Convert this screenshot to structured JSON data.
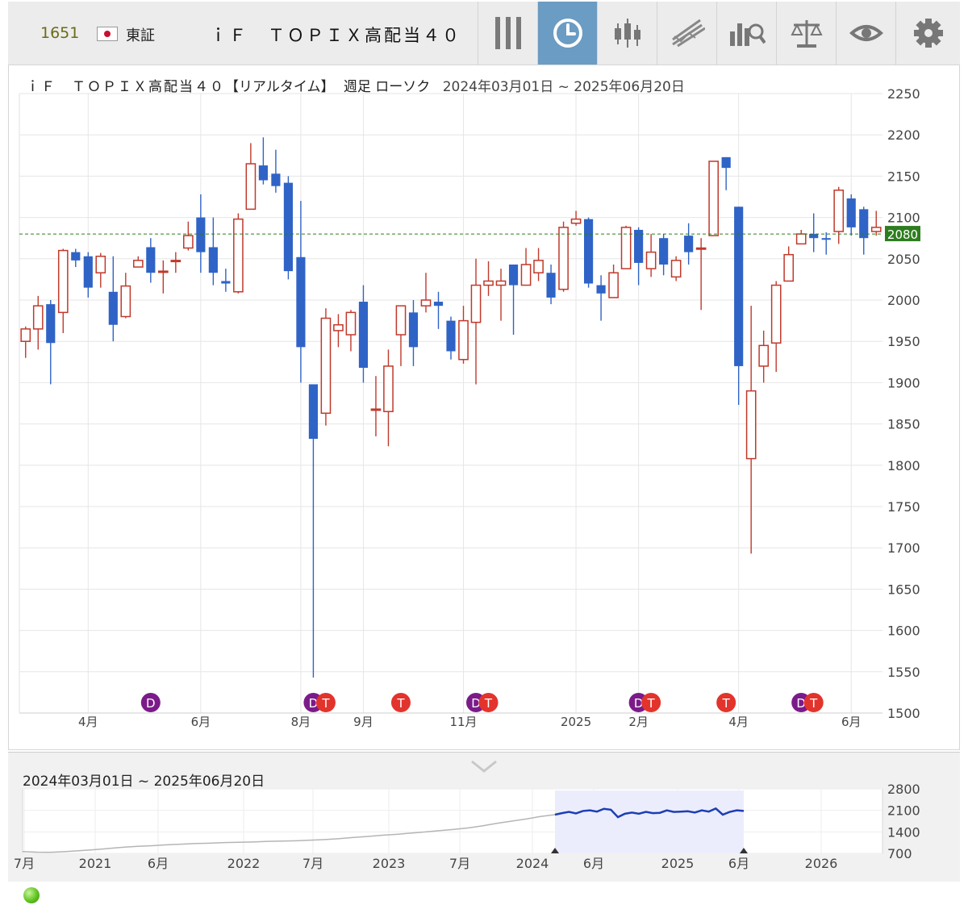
{
  "header": {
    "ticker_code": "1651",
    "exchange": "東証",
    "security_name": "ｉＦ　ＴＯＰＩＸ高配当４０"
  },
  "toolbar": {
    "buttons": [
      {
        "icon": "drag-handle-icon",
        "active": false
      },
      {
        "icon": "clock-icon",
        "active": true
      },
      {
        "icon": "candlestick-icon",
        "active": false
      },
      {
        "icon": "trendline-icon",
        "active": false
      },
      {
        "icon": "analysis-icon",
        "active": false
      },
      {
        "icon": "compare-scale-icon",
        "active": false
      },
      {
        "icon": "eye-icon",
        "active": false
      },
      {
        "icon": "gear-icon",
        "active": false
      }
    ]
  },
  "chart_header": {
    "name": "ｉＦ　ＴＯＰＩＸ高配当４０",
    "mode": "【リアルタイム】",
    "period": "週足 ローソク",
    "range": "2024年03月01日 ~ 2025年06月20日"
  },
  "chart_data": {
    "type": "candlestick",
    "ylim": [
      1500,
      2250
    ],
    "yticks": [
      1500,
      1550,
      1600,
      1650,
      1700,
      1750,
      1800,
      1850,
      1900,
      1950,
      2000,
      2050,
      2100,
      2150,
      2200,
      2250
    ],
    "current_price": 2080,
    "x_labels": [
      {
        "label": "4月",
        "index": 5
      },
      {
        "label": "6月",
        "index": 14
      },
      {
        "label": "8月",
        "index": 22
      },
      {
        "label": "9月",
        "index": 27
      },
      {
        "label": "11月",
        "index": 35
      },
      {
        "label": "2025",
        "index": 44
      },
      {
        "label": "2月",
        "index": 49
      },
      {
        "label": "4月",
        "index": 57
      },
      {
        "label": "6月",
        "index": 66
      }
    ],
    "candles": [
      [
        1950,
        1965,
        1930,
        1968
      ],
      [
        1965,
        1993,
        1940,
        2005
      ],
      [
        1995,
        1948,
        1898,
        2000
      ],
      [
        1985,
        2060,
        1960,
        2062
      ],
      [
        2058,
        2048,
        2040,
        2062
      ],
      [
        2053,
        2015,
        2003,
        2058
      ],
      [
        2033,
        2053,
        2015,
        2057
      ],
      [
        2010,
        1970,
        1950,
        2053
      ],
      [
        1980,
        2017,
        1978,
        2033
      ],
      [
        2040,
        2048,
        2040,
        2053
      ],
      [
        2064,
        2033,
        2021,
        2075
      ],
      [
        2035,
        2035,
        2008,
        2048
      ],
      [
        2048,
        2048,
        2033,
        2058
      ],
      [
        2063,
        2078,
        2060,
        2095
      ],
      [
        2100,
        2058,
        2033,
        2128
      ],
      [
        2064,
        2033,
        2018,
        2100
      ],
      [
        2023,
        2020,
        2010,
        2038
      ],
      [
        2010,
        2098,
        2008,
        2105
      ],
      [
        2110,
        2165,
        2110,
        2190
      ],
      [
        2163,
        2145,
        2140,
        2197
      ],
      [
        2153,
        2138,
        2130,
        2182
      ],
      [
        2142,
        2035,
        2025,
        2150
      ],
      [
        2052,
        1943,
        1900,
        2120
      ],
      [
        1898,
        1832,
        1543,
        1898
      ],
      [
        1863,
        1978,
        1848,
        1990
      ],
      [
        1963,
        1970,
        1943,
        1983
      ],
      [
        1958,
        1985,
        1938,
        1988
      ],
      [
        1998,
        1918,
        1900,
        2018
      ],
      [
        1868,
        1868,
        1835,
        1908
      ],
      [
        1865,
        1920,
        1823,
        1940
      ],
      [
        1958,
        1993,
        1920,
        1993
      ],
      [
        1985,
        1943,
        1920,
        2000
      ],
      [
        1993,
        2000,
        1985,
        2033
      ],
      [
        1998,
        1993,
        1965,
        2010
      ],
      [
        1975,
        1938,
        1928,
        1980
      ],
      [
        1928,
        1975,
        1923,
        1993
      ],
      [
        1973,
        2018,
        1898,
        2050
      ],
      [
        2018,
        2023,
        2005,
        2047
      ],
      [
        2018,
        2023,
        1975,
        2038
      ],
      [
        2043,
        2018,
        1958,
        2043
      ],
      [
        2018,
        2043,
        2018,
        2063
      ],
      [
        2033,
        2048,
        2023,
        2063
      ],
      [
        2033,
        2003,
        1995,
        2043
      ],
      [
        2013,
        2088,
        2010,
        2095
      ],
      [
        2093,
        2098,
        2090,
        2108
      ],
      [
        2098,
        2020,
        2015,
        2100
      ],
      [
        2018,
        2008,
        1975,
        2030
      ],
      [
        2003,
        2033,
        2003,
        2043
      ],
      [
        2038,
        2088,
        2038,
        2090
      ],
      [
        2085,
        2045,
        2018,
        2088
      ],
      [
        2038,
        2058,
        2028,
        2080
      ],
      [
        2075,
        2043,
        2030,
        2080
      ],
      [
        2028,
        2048,
        2023,
        2053
      ],
      [
        2078,
        2058,
        2043,
        2093
      ],
      [
        2063,
        2063,
        1988,
        2075
      ],
      [
        2078,
        2168,
        2078,
        2168
      ],
      [
        2173,
        2160,
        2133,
        2173
      ],
      [
        2113,
        1920,
        1873,
        2113
      ],
      [
        1808,
        1890,
        1693,
        1993
      ],
      [
        1920,
        1945,
        1900,
        1963
      ],
      [
        1948,
        2018,
        1913,
        2023
      ],
      [
        2023,
        2055,
        2023,
        2065
      ],
      [
        2068,
        2080,
        2068,
        2085
      ],
      [
        2080,
        2075,
        2058,
        2105
      ],
      [
        2075,
        2073,
        2055,
        2082
      ],
      [
        2083,
        2133,
        2068,
        2137
      ],
      [
        2123,
        2088,
        2078,
        2128
      ],
      [
        2110,
        2075,
        2055,
        2113
      ],
      [
        2083,
        2088,
        2078,
        2108
      ]
    ],
    "events": [
      {
        "label": "D",
        "type": "dividend",
        "index": 10
      },
      {
        "label": "D",
        "type": "dividend",
        "index": 23
      },
      {
        "label": "T",
        "type": "tankan",
        "index": 24
      },
      {
        "label": "T",
        "type": "tankan",
        "index": 30
      },
      {
        "label": "D",
        "type": "dividend",
        "index": 36
      },
      {
        "label": "T",
        "type": "tankan",
        "index": 37
      },
      {
        "label": "D",
        "type": "dividend",
        "index": 49
      },
      {
        "label": "T",
        "type": "tankan",
        "index": 50
      },
      {
        "label": "T",
        "type": "tankan",
        "index": 56
      },
      {
        "label": "D",
        "type": "dividend",
        "index": 62
      },
      {
        "label": "T",
        "type": "tankan",
        "index": 63
      }
    ],
    "colors": {
      "up": "#c0392b",
      "down": "#2f63c6",
      "grid": "#e6e6e6",
      "current_line": "#2e7d1f",
      "dividend": "#7b1b8a",
      "tankan": "#e2342c"
    }
  },
  "navigator": {
    "range_label": "2024年03月01日 ~ 2025年06月20日",
    "ylim": [
      700,
      2800
    ],
    "yticks": [
      700,
      1400,
      2100,
      2800
    ],
    "x_labels": [
      "7月",
      "2021",
      "6月",
      "2022",
      "7月",
      "2023",
      "7月",
      "2024",
      "6月",
      "2025",
      "6月",
      "2026"
    ],
    "history_values": [
      760,
      740,
      735,
      760,
      790,
      820,
      860,
      900,
      930,
      950,
      980,
      1000,
      1020,
      1030,
      1050,
      1060,
      1070,
      1090,
      1100,
      1110,
      1130,
      1150,
      1180,
      1220,
      1250,
      1290,
      1320,
      1360,
      1400,
      1440,
      1480,
      1530,
      1600,
      1680,
      1750,
      1820,
      1900,
      1960
    ],
    "selected_values": [
      1960,
      2010,
      2050,
      2000,
      2080,
      2100,
      2060,
      2150,
      2120,
      1880,
      1990,
      2030,
      1990,
      2050,
      2010,
      2020,
      2100,
      2050,
      2060,
      2070,
      2030,
      2100,
      2060,
      2160,
      1960,
      2050,
      2100,
      2080
    ],
    "colors": {
      "history": "#b5b5b5",
      "selected": "#1d3fb4",
      "selection_fill": "#ecedfc"
    }
  }
}
